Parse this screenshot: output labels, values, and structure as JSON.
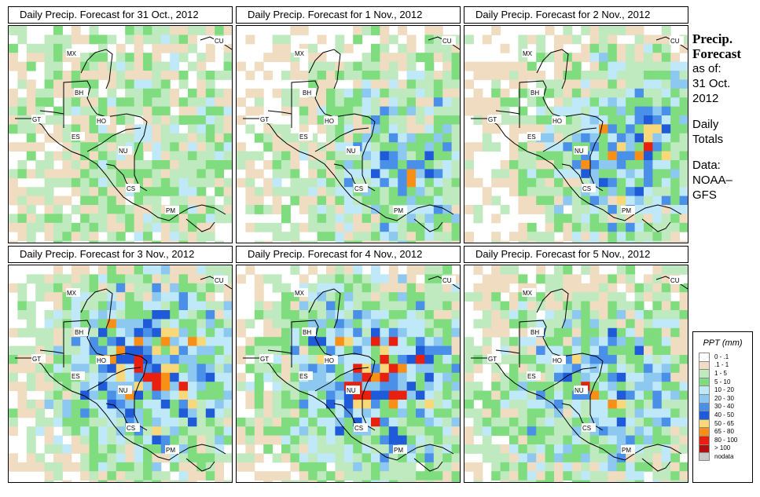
{
  "panels": [
    {
      "title": "Daily Precip. Forecast for  31 Oct., 2012",
      "intensity": 0.15
    },
    {
      "title": "Daily Precip. Forecast for  1 Nov., 2012",
      "intensity": 0.45
    },
    {
      "title": "Daily Precip. Forecast for  2 Nov., 2012",
      "intensity": 0.6
    },
    {
      "title": "Daily Precip. Forecast for  3 Nov., 2012",
      "intensity": 0.75
    },
    {
      "title": "Daily Precip. Forecast for  4 Nov., 2012",
      "intensity": 0.8
    },
    {
      "title": "Daily Precip. Forecast for  5 Nov., 2012",
      "intensity": 0.55
    }
  ],
  "country_labels": {
    "mx": "MX",
    "cu": "CU",
    "bh": "BH",
    "gt": "GT",
    "ho": "HO",
    "es": "ES",
    "nu": "NU",
    "cs": "CS",
    "pm": "PM"
  },
  "side": {
    "title_line1": "Precip.",
    "title_line2": "Forecast",
    "asof": "as of:",
    "date1": "31 Oct.",
    "date2": "2012",
    "daily": "Daily",
    "totals": "Totals",
    "data1": "Data:",
    "data2": "NOAA–",
    "data3": "GFS"
  },
  "legend": {
    "title": "PPT (mm)",
    "items": [
      {
        "label": "0 - .1",
        "color": "#ffffff"
      },
      {
        "label": ".1 - 1",
        "color": "#f0dcc0"
      },
      {
        "label": "1 - 5",
        "color": "#bfeabf"
      },
      {
        "label": "5 - 10",
        "color": "#7fdc7f"
      },
      {
        "label": "10 - 20",
        "color": "#bfe8f8"
      },
      {
        "label": "20 - 30",
        "color": "#8cc8f0"
      },
      {
        "label": "30 - 40",
        "color": "#4a90e8"
      },
      {
        "label": "40 - 50",
        "color": "#1f5ad8"
      },
      {
        "label": "50 - 65",
        "color": "#f8d878"
      },
      {
        "label": "65 - 80",
        "color": "#f89018"
      },
      {
        "label": "80 - 100",
        "color": "#e82010"
      },
      {
        "label": "> 100",
        "color": "#b01010"
      },
      {
        "label": "nodata",
        "color": "#c8c8c8"
      }
    ]
  }
}
